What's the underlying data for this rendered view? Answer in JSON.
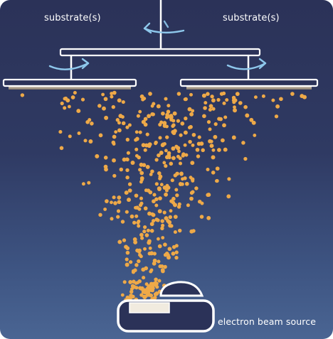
{
  "labels": {
    "substrate_left": "substrate(s)",
    "substrate_right": "substrate(s)",
    "source": "electron beam source"
  },
  "colors": {
    "background_top": "#2b3258",
    "background_bottom": "#4a6593",
    "frame": "#ffffff",
    "arrow": "#8ec8ec",
    "particle": "#eea948",
    "substrate_coating": "#c9b18a"
  },
  "icons": [
    "rotation-arrow-icon",
    "rotation-arrow-icon",
    "rotation-arrow-icon"
  ]
}
